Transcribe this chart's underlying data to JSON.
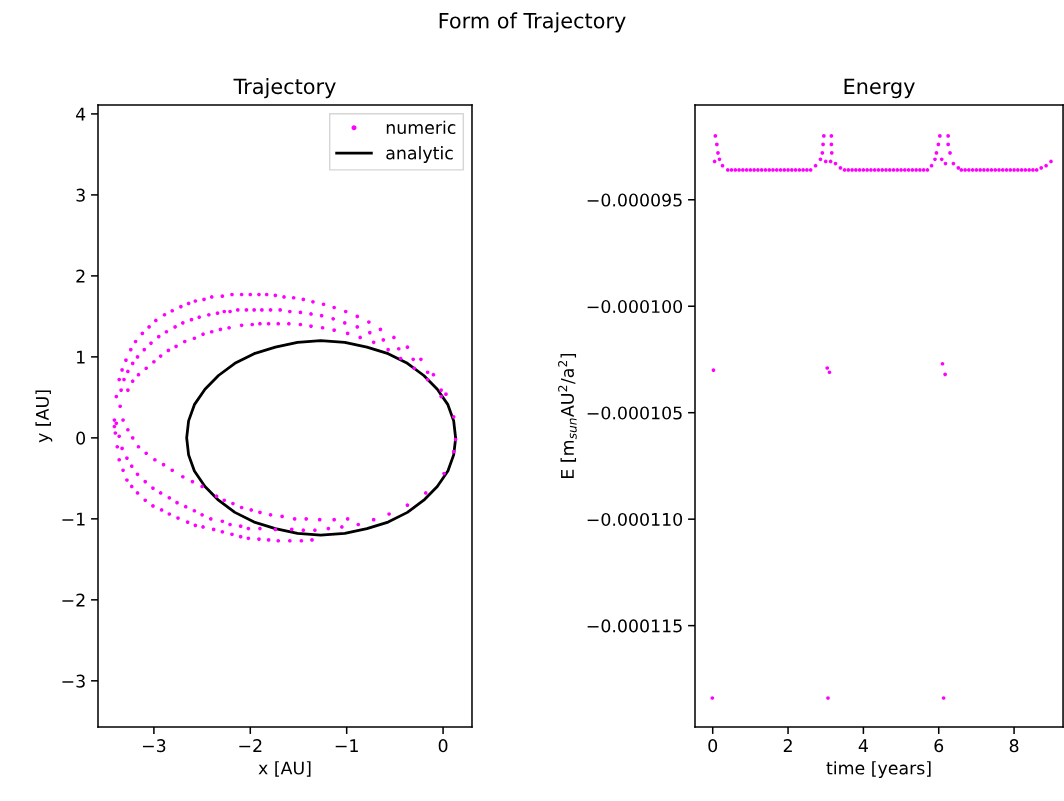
{
  "chart_data": [
    {
      "type": "scatter",
      "title": "Trajectory",
      "xlabel": "x [AU]",
      "ylabel": "y [AU]",
      "annotations": [
        "Form of Trajectory"
      ],
      "xlim": [
        -3.58,
        0.3
      ],
      "ylim": [
        -3.57,
        4.11
      ],
      "xticks": [
        {
          "value": -3,
          "label": "−3"
        },
        {
          "value": -2,
          "label": "−2"
        },
        {
          "value": -1,
          "label": "−1"
        },
        0
      ],
      "yticks": [
        {
          "value": -3,
          "label": "−3"
        },
        {
          "value": -2,
          "label": "−2"
        },
        {
          "value": -1,
          "label": "−1"
        },
        0,
        1,
        2,
        3,
        4
      ],
      "legend": "top right",
      "grid": false,
      "series": [
        {
          "name": "numeric",
          "type": "scatter",
          "marker": "circle",
          "color": "#ff00ff",
          "x": [
            -3.36,
            -3.33,
            -3.29,
            -3.24,
            -3.19,
            -3.12,
            -3.05,
            -2.98,
            -2.89,
            -2.81,
            -2.72,
            -2.64,
            -2.57,
            -2.48,
            -2.4,
            -2.29,
            -2.19,
            -2.09,
            -2.0,
            -1.91,
            -1.83,
            -1.74,
            -1.65,
            -1.55,
            -1.45,
            -1.35,
            -1.24,
            -1.13,
            -1.01,
            -0.89,
            -0.77,
            -0.65,
            -0.51,
            -0.37,
            -0.23,
            -0.1,
            0.03,
            -3.34,
            -3.31,
            -3.27,
            -3.22,
            -3.17,
            -3.1,
            -3.03,
            -2.95,
            -2.87,
            -2.78,
            -2.7,
            -2.61,
            -2.53,
            -2.43,
            -2.34,
            -2.27,
            -2.21,
            -2.13,
            -2.04,
            -1.96,
            -1.88,
            -1.79,
            -1.69,
            -1.59,
            -1.48,
            -1.37,
            -1.26,
            -1.14,
            -1.02,
            -0.89,
            -0.76,
            -0.62,
            -0.46,
            -0.31,
            -0.16,
            -0.02,
            0.11,
            -3.27,
            -3.22,
            -3.16,
            -3.08,
            -3.0,
            -2.93,
            -2.85,
            -2.77,
            -2.68,
            -2.58,
            -2.49,
            -2.4,
            -2.31,
            -2.22,
            -2.09,
            -1.98,
            -1.9,
            -1.81,
            -1.71,
            -1.6,
            -1.48,
            -1.37,
            -1.25,
            -1.13,
            -0.99,
            -0.86,
            -0.72,
            -0.57,
            -0.44,
            -0.3,
            -0.16,
            -0.02,
            0.13,
            -3.39,
            -3.41,
            -3.41,
            -3.4,
            -3.38,
            -3.36,
            -3.32,
            -3.28,
            -3.23,
            -3.17,
            -3.09,
            -3.01,
            -2.92,
            -2.84,
            -2.75,
            -2.65,
            -2.57,
            -2.49,
            -2.38,
            -2.29,
            -2.19,
            -2.1,
            -2.02,
            -1.91,
            -1.81,
            -1.71,
            -1.59,
            -1.47,
            -1.36,
            -3.39,
            -3.36,
            -3.33,
            -3.28,
            -3.23,
            -3.17,
            -3.09,
            -3.01,
            -2.93,
            -2.84,
            -2.76,
            -2.67,
            -2.58,
            -2.5,
            -2.41,
            -2.29,
            -2.21,
            -2.1,
            -2.02,
            -1.9,
            -1.74,
            -1.57,
            -1.45,
            -1.33,
            -1.19,
            -1.05,
            -0.88,
            -0.72,
            -0.56,
            -0.37,
            -0.18,
            0.01,
            0.11,
            -3.35,
            -3.32,
            -3.27,
            -3.22,
            -3.16,
            -3.08,
            -2.99,
            -2.9,
            -2.81,
            -2.7,
            -2.6,
            -2.5,
            -2.35,
            -2.27,
            -2.18,
            -2.09,
            -1.99,
            -1.9,
            -1.79,
            -1.67,
            -1.54,
            -1.42,
            -1.28,
            -1.13,
            -0.99
          ],
          "values": [
            0.72,
            0.84,
            0.96,
            1.09,
            1.19,
            1.29,
            1.37,
            1.45,
            1.52,
            1.57,
            1.62,
            1.66,
            1.69,
            1.71,
            1.74,
            1.75,
            1.77,
            1.77,
            1.77,
            1.77,
            1.77,
            1.76,
            1.74,
            1.73,
            1.71,
            1.68,
            1.65,
            1.61,
            1.56,
            1.5,
            1.43,
            1.34,
            1.24,
            1.12,
            0.97,
            0.78,
            0.54,
            0.59,
            0.72,
            0.82,
            0.92,
            1.0,
            1.09,
            1.17,
            1.25,
            1.31,
            1.37,
            1.42,
            1.46,
            1.49,
            1.52,
            1.54,
            1.56,
            1.56,
            1.58,
            1.58,
            1.58,
            1.58,
            1.58,
            1.58,
            1.56,
            1.55,
            1.53,
            1.51,
            1.47,
            1.42,
            1.37,
            1.3,
            1.21,
            1.1,
            0.97,
            0.81,
            0.59,
            0.26,
            0.59,
            0.7,
            0.78,
            0.86,
            0.94,
            1.01,
            1.08,
            1.13,
            1.19,
            1.23,
            1.28,
            1.31,
            1.34,
            1.36,
            1.39,
            1.4,
            1.41,
            1.41,
            1.41,
            1.41,
            1.4,
            1.38,
            1.36,
            1.33,
            1.29,
            1.24,
            1.18,
            1.09,
            0.98,
            0.86,
            0.72,
            0.51,
            -0.02,
            0.51,
            0.22,
            0.14,
            0.06,
            -0.11,
            -0.27,
            -0.4,
            -0.52,
            -0.6,
            -0.68,
            -0.77,
            -0.84,
            -0.89,
            -0.94,
            -0.99,
            -1.04,
            -1.08,
            -1.1,
            -1.13,
            -1.16,
            -1.19,
            -1.22,
            -1.24,
            -1.25,
            -1.26,
            -1.27,
            -1.27,
            -1.27,
            -1.26,
            0.18,
            0.02,
            -0.13,
            -0.25,
            -0.35,
            -0.45,
            -0.54,
            -0.62,
            -0.68,
            -0.74,
            -0.8,
            -0.85,
            -0.9,
            -0.95,
            -1.0,
            -1.03,
            -1.07,
            -1.09,
            -1.12,
            -1.12,
            -1.13,
            -1.13,
            -1.14,
            -1.14,
            -1.12,
            -1.1,
            -1.07,
            -1.01,
            -0.94,
            -0.83,
            -0.68,
            -0.44,
            -0.17,
            0.39,
            0.22,
            0.1,
            0.0,
            -0.11,
            -0.19,
            -0.27,
            -0.33,
            -0.4,
            -0.48,
            -0.54,
            -0.6,
            -0.72,
            -0.77,
            -0.81,
            -0.86,
            -0.89,
            -0.92,
            -0.95,
            -0.97,
            -1.0,
            -1.0,
            -1.01,
            -1.01,
            -1.0
          ]
        },
        {
          "name": "analytic",
          "type": "line",
          "marker": "none",
          "color": "#000000",
          "line_style": "solid",
          "x": [
            0.13,
            0.11,
            0.05,
            -0.06,
            -0.2,
            -0.37,
            -0.57,
            -0.79,
            -1.02,
            -1.27,
            -1.51,
            -1.74,
            -1.96,
            -2.16,
            -2.33,
            -2.47,
            -2.58,
            -2.64,
            -2.66,
            -2.64,
            -2.58,
            -2.47,
            -2.33,
            -2.16,
            -1.96,
            -1.74,
            -1.51,
            -1.27,
            -1.02,
            -0.79,
            -0.57,
            -0.37,
            -0.2,
            -0.06,
            0.05,
            0.11,
            0.13
          ],
          "values": [
            0,
            0.21,
            0.41,
            0.6,
            0.77,
            0.92,
            1.04,
            1.12,
            1.18,
            1.2,
            1.18,
            1.12,
            1.04,
            0.92,
            0.77,
            0.6,
            0.41,
            0.21,
            0,
            -0.21,
            -0.41,
            -0.6,
            -0.77,
            -0.92,
            -1.04,
            -1.12,
            -1.18,
            -1.2,
            -1.18,
            -1.12,
            -1.04,
            -0.92,
            -0.77,
            -0.6,
            -0.41,
            -0.21,
            -0.01
          ]
        }
      ]
    },
    {
      "type": "scatter",
      "title": "Energy",
      "xlabel": "time [years]",
      "ylabel": "E [m$_{sun}$AU$^{2}$/a$^{2}$]",
      "xlim": [
        -0.47,
        9.3
      ],
      "ylim": [
        -0.00011976,
        -9.055e-05
      ],
      "xticks": [
        0,
        2,
        4,
        6,
        8
      ],
      "yticks": [
        {
          "value": -9.5e-05,
          "label": "−0.000095"
        },
        {
          "value": -0.0001,
          "label": "−0.000100"
        },
        {
          "value": -0.000105,
          "label": "−0.000105"
        },
        {
          "value": -0.00011,
          "label": "−0.000110"
        },
        {
          "value": -0.000115,
          "label": "−0.000115"
        }
      ],
      "grid": false,
      "series": [
        {
          "marker": "circle",
          "color": "#ff00ff",
          "x": [
            -0.01,
            0.02,
            0.05,
            0.07,
            0.11,
            0.14,
            0.18,
            0.26,
            0.4,
            0.5,
            0.6,
            0.7,
            0.8,
            0.9,
            1.0,
            1.1,
            1.2,
            1.3,
            1.4,
            1.5,
            1.6,
            1.7,
            1.8,
            1.9,
            2.0,
            2.1,
            2.2,
            2.3,
            2.4,
            2.5,
            2.6,
            2.73,
            2.86,
            2.91,
            2.93,
            2.95,
            3.0,
            3.04,
            3.06,
            3.1,
            3.13,
            3.15,
            3.15,
            3.16,
            3.26,
            3.39,
            3.5,
            3.6,
            3.7,
            3.8,
            3.9,
            4.0,
            4.1,
            4.2,
            4.3,
            4.4,
            4.5,
            4.6,
            4.7,
            4.8,
            4.9,
            5.0,
            5.1,
            5.2,
            5.3,
            5.4,
            5.5,
            5.6,
            5.7,
            5.81,
            5.9,
            5.94,
            5.99,
            6.03,
            6.08,
            6.1,
            6.13,
            6.17,
            6.18,
            6.25,
            6.25,
            6.3,
            6.39,
            6.52,
            6.6,
            6.7,
            6.8,
            6.9,
            7.0,
            7.1,
            7.2,
            7.3,
            7.4,
            7.5,
            7.6,
            7.7,
            7.8,
            7.9,
            8.0,
            8.1,
            8.2,
            8.3,
            8.4,
            8.5,
            8.6,
            8.72,
            8.85,
            8.98
          ],
          "values": [
            -0.0001184,
            -0.000103,
            -9.32e-05,
            -9.2e-05,
            -9.24e-05,
            -9.28e-05,
            -9.31e-05,
            -9.34e-05,
            -9.36e-05,
            -9.36e-05,
            -9.36e-05,
            -9.36e-05,
            -9.36e-05,
            -9.36e-05,
            -9.36e-05,
            -9.36e-05,
            -9.36e-05,
            -9.36e-05,
            -9.36e-05,
            -9.36e-05,
            -9.36e-05,
            -9.36e-05,
            -9.36e-05,
            -9.36e-05,
            -9.36e-05,
            -9.36e-05,
            -9.36e-05,
            -9.36e-05,
            -9.36e-05,
            -9.36e-05,
            -9.36e-05,
            -9.34e-05,
            -9.31e-05,
            -9.28e-05,
            -9.24e-05,
            -9.2e-05,
            -9.32e-05,
            -0.0001029,
            -0.0001184,
            -0.0001031,
            -9.32e-05,
            -9.2e-05,
            -9.24e-05,
            -9.28e-05,
            -9.33e-05,
            -9.35e-05,
            -9.36e-05,
            -9.36e-05,
            -9.36e-05,
            -9.36e-05,
            -9.36e-05,
            -9.36e-05,
            -9.36e-05,
            -9.36e-05,
            -9.36e-05,
            -9.36e-05,
            -9.36e-05,
            -9.36e-05,
            -9.36e-05,
            -9.36e-05,
            -9.36e-05,
            -9.36e-05,
            -9.36e-05,
            -9.36e-05,
            -9.36e-05,
            -9.36e-05,
            -9.36e-05,
            -9.36e-05,
            -9.36e-05,
            -9.34e-05,
            -9.31e-05,
            -9.28e-05,
            -9.24e-05,
            -9.2e-05,
            -9.31e-05,
            -0.0001027,
            -0.0001184,
            -0.0001032,
            -9.33e-05,
            -9.2e-05,
            -9.24e-05,
            -9.28e-05,
            -9.33e-05,
            -9.35e-05,
            -9.36e-05,
            -9.36e-05,
            -9.36e-05,
            -9.36e-05,
            -9.36e-05,
            -9.36e-05,
            -9.36e-05,
            -9.36e-05,
            -9.36e-05,
            -9.36e-05,
            -9.36e-05,
            -9.36e-05,
            -9.36e-05,
            -9.36e-05,
            -9.36e-05,
            -9.36e-05,
            -9.36e-05,
            -9.36e-05,
            -9.36e-05,
            -9.36e-05,
            -9.36e-05,
            -9.35e-05,
            -9.34e-05,
            -9.32e-05
          ]
        }
      ]
    }
  ]
}
